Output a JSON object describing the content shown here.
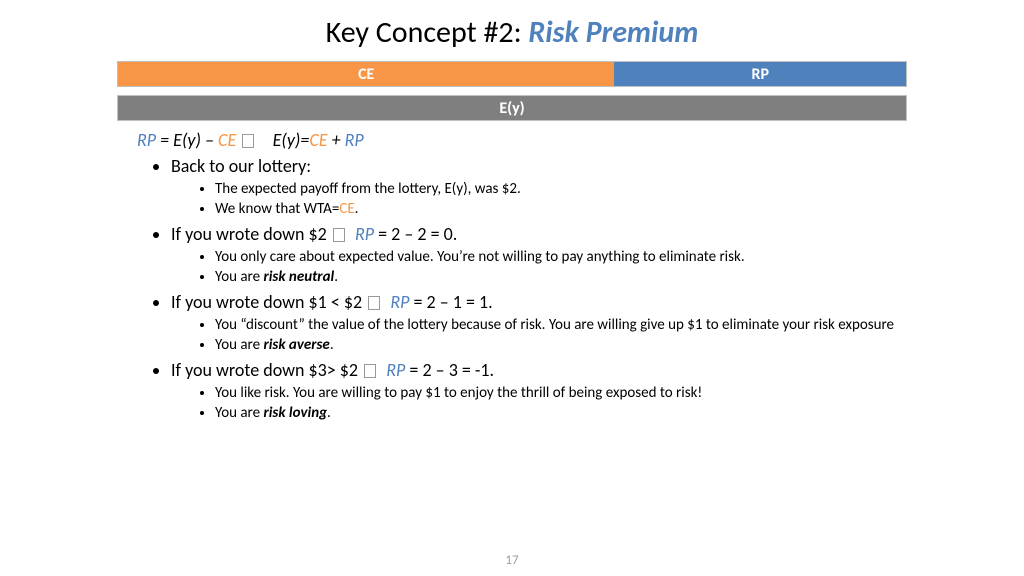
{
  "title": {
    "prefix": "Key Concept #2: ",
    "em": "Risk Premium",
    "em_color": "#4f81bd"
  },
  "bars": {
    "border_color": "#bfbfbf",
    "row1": [
      {
        "label": "CE",
        "width_pct": 63,
        "bg": "#f79646"
      },
      {
        "label": "RP",
        "width_pct": 37,
        "bg": "#4f81bd"
      }
    ],
    "row2": [
      {
        "label": "E(y)",
        "width_pct": 100,
        "bg": "#7f7f7f"
      }
    ]
  },
  "colors": {
    "rp": "#4f81bd",
    "ce": "#f79646"
  },
  "eq": {
    "lhs_rp": "RP",
    "eq1_mid": " = E(y) – ",
    "lhs_ce": "CE",
    "gap": "   ",
    "rhs_pre": "E(y)=",
    "rhs_ce": "CE",
    "rhs_mid": " + ",
    "rhs_rp": "RP"
  },
  "b1": {
    "head": "Back to our lottery:",
    "s1": "The expected payoff from the lottery, E(y), was $2.",
    "s2_pre": "We know that WTA=",
    "s2_ce": "CE",
    "s2_post": "."
  },
  "b2": {
    "head_pre": "If you wrote down $2 ",
    "head_rp": "RP",
    "head_post": " = 2 – 2 = 0.",
    "s1": "You only care about expected value.   You’re not willing to pay anything to eliminate risk.",
    "s2_pre": "You are ",
    "s2_bi": "risk neutral",
    "s2_post": "."
  },
  "b3": {
    "head_pre": "If you wrote down $1 < $2 ",
    "head_rp": "RP",
    "head_post": " = 2 – 1 = 1.",
    "s1": "You “discount” the value of the lottery because of risk.  You are willing give up $1 to eliminate your risk exposure",
    "s2_pre": "You are ",
    "s2_bi": "risk averse",
    "s2_post": "."
  },
  "b4": {
    "head_pre": "If you wrote down $3> $2 ",
    "head_rp": "RP",
    "head_post": " = 2 – 3 = -1.",
    "s1": "You like risk.  You are willing to pay $1 to enjoy the thrill of being exposed to risk!",
    "s2_pre": "You are ",
    "s2_bi": "risk loving",
    "s2_post": "."
  },
  "page": "17"
}
